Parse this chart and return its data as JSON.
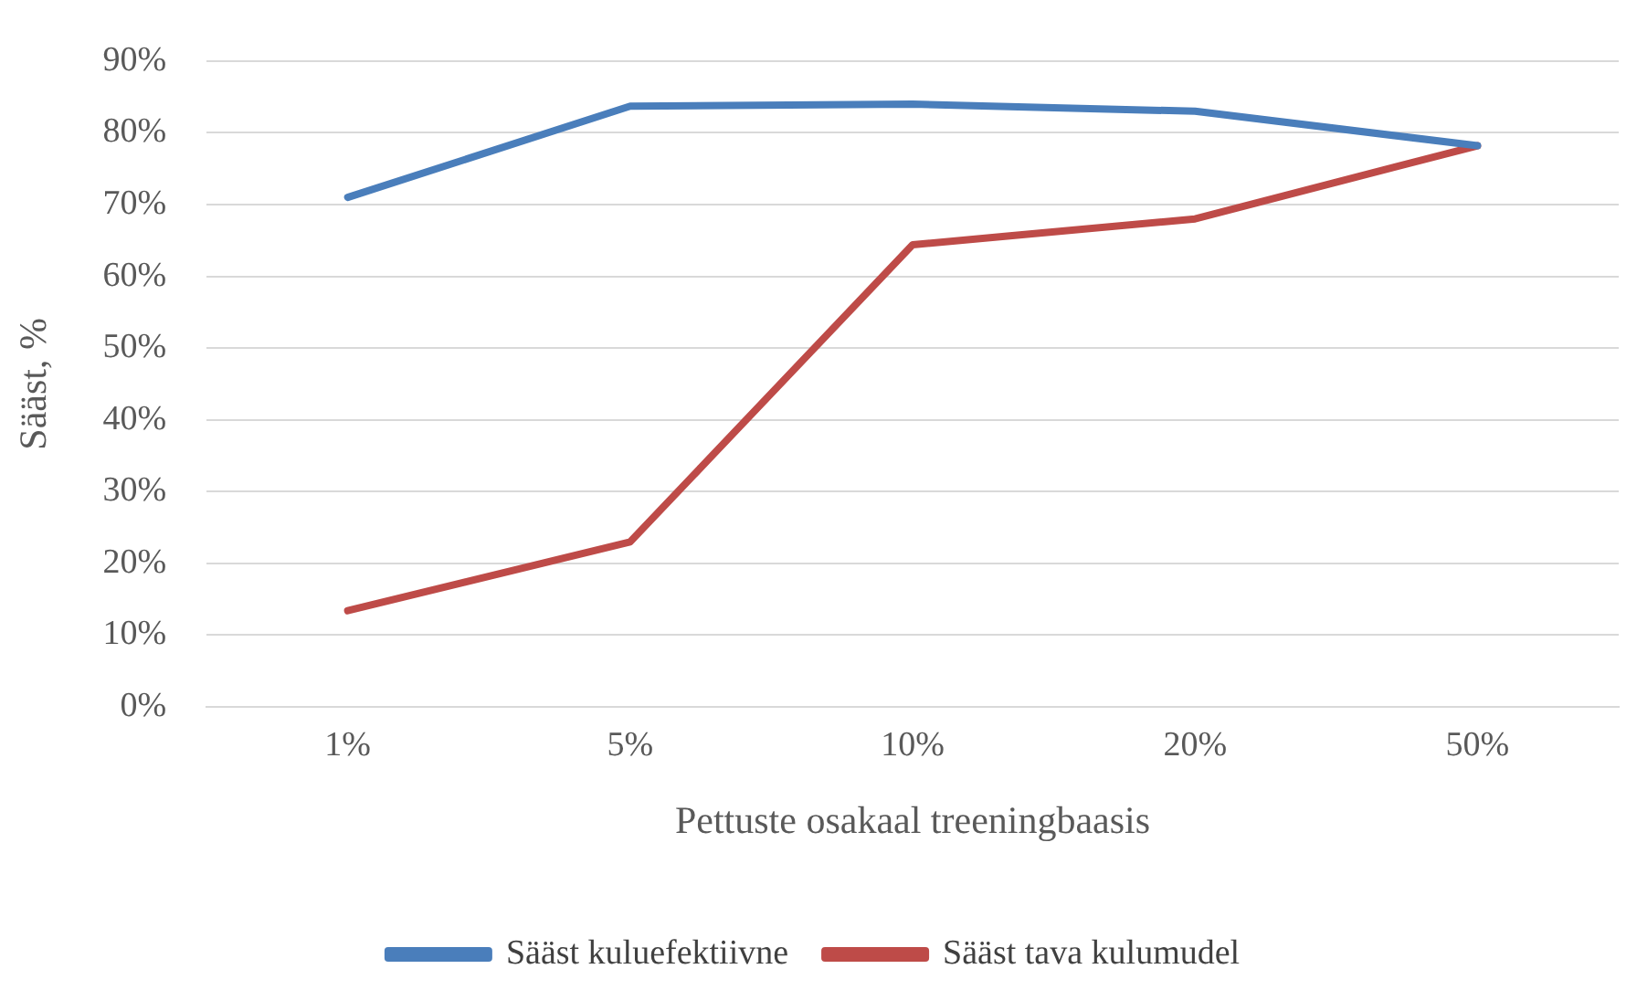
{
  "chart_data": {
    "type": "line",
    "xlabel": "Pettuste osakaal treeningbaasis",
    "ylabel": "Sääst, %",
    "categories": [
      "1%",
      "5%",
      "10%",
      "20%",
      "50%"
    ],
    "series": [
      {
        "name": "Sääst kuluefektiivne",
        "color": "#4a7ebb",
        "values": [
          71,
          83.7,
          84,
          83,
          78.2
        ]
      },
      {
        "name": "Sääst tava kulumudel",
        "color": "#be4b48",
        "values": [
          13.4,
          23,
          64.4,
          68,
          78.2
        ]
      }
    ],
    "ylim": [
      0,
      90
    ],
    "yticks": [
      {
        "value": 0,
        "label": "0%"
      },
      {
        "value": 10,
        "label": "10%"
      },
      {
        "value": 20,
        "label": "20%"
      },
      {
        "value": 30,
        "label": "30%"
      },
      {
        "value": 40,
        "label": "40%"
      },
      {
        "value": 50,
        "label": "50%"
      },
      {
        "value": 60,
        "label": "60%"
      },
      {
        "value": 70,
        "label": "70%"
      },
      {
        "value": 80,
        "label": "80%"
      },
      {
        "value": 90,
        "label": "90%"
      }
    ],
    "grid": "y",
    "legend": "bottom",
    "marker": "none",
    "line_style": "solid"
  }
}
